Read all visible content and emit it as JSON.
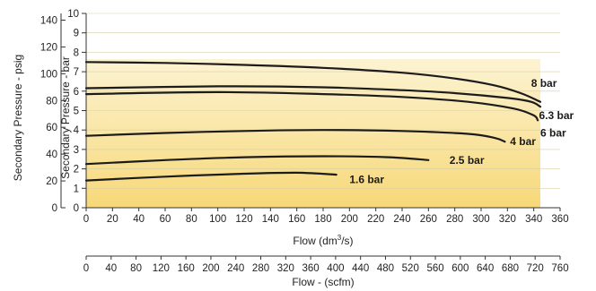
{
  "chart_data": {
    "type": "line",
    "xlabel_prefix": "Flow (dm",
    "xlabel_sup": "3",
    "xlabel_suffix": "/s)",
    "ylabel_bar": "Secondary Pressure - bar",
    "ylabel_psig": "Secondary Pressure - psig",
    "xlabel_scfm": "Flow - (scfm)",
    "xlim": [
      0,
      360
    ],
    "ylim": [
      0,
      10
    ],
    "x_ticks": [
      "0",
      "20",
      "40",
      "60",
      "80",
      "100",
      "120",
      "140",
      "160",
      "180",
      "200",
      "220",
      "240",
      "260",
      "280",
      "300",
      "320",
      "340",
      "360"
    ],
    "y_bar_ticks": [
      "0",
      "1",
      "2",
      "3",
      "4",
      "5",
      "6",
      "7",
      "8",
      "9",
      "10"
    ],
    "y_psig_ticks": [
      "0",
      "20",
      "40",
      "60",
      "80",
      "100",
      "120",
      "140"
    ],
    "scfm_ticks": [
      "0",
      "40",
      "80",
      "120",
      "160",
      "200",
      "240",
      "280",
      "320",
      "360",
      "400",
      "440",
      "480",
      "520",
      "560",
      "600",
      "640",
      "680",
      "720",
      "760"
    ],
    "psig_max": 145,
    "scfm_max": 760,
    "shaded_region": {
      "x_max": 345,
      "colors": [
        "#fcf3d2",
        "#f7d878"
      ]
    },
    "series": [
      {
        "name": "8 bar",
        "points": [
          [
            0,
            7.5
          ],
          [
            60,
            7.45
          ],
          [
            120,
            7.35
          ],
          [
            180,
            7.2
          ],
          [
            240,
            6.95
          ],
          [
            280,
            6.65
          ],
          [
            310,
            6.3
          ],
          [
            330,
            5.9
          ],
          [
            345,
            5.45
          ]
        ],
        "label_at": [
          338,
          6.4
        ]
      },
      {
        "name": "6.3 bar",
        "points": [
          [
            0,
            6.15
          ],
          [
            100,
            6.25
          ],
          [
            180,
            6.2
          ],
          [
            240,
            6.05
          ],
          [
            280,
            5.9
          ],
          [
            320,
            5.65
          ],
          [
            338,
            5.45
          ],
          [
            345,
            5.2
          ]
        ],
        "label_at": [
          344,
          4.75
        ]
      },
      {
        "name": "6 bar",
        "points": [
          [
            0,
            5.85
          ],
          [
            100,
            5.95
          ],
          [
            180,
            5.85
          ],
          [
            240,
            5.7
          ],
          [
            290,
            5.45
          ],
          [
            325,
            5.1
          ],
          [
            340,
            4.75
          ],
          [
            343,
            4.5
          ]
        ],
        "label_at": [
          345,
          3.85
        ]
      },
      {
        "name": "4 bar",
        "points": [
          [
            0,
            3.7
          ],
          [
            60,
            3.85
          ],
          [
            120,
            3.95
          ],
          [
            180,
            4.0
          ],
          [
            240,
            3.95
          ],
          [
            290,
            3.8
          ],
          [
            310,
            3.6
          ],
          [
            318,
            3.4
          ]
        ],
        "label_at": [
          322,
          3.4
        ]
      },
      {
        "name": "2.5 bar",
        "points": [
          [
            0,
            2.25
          ],
          [
            60,
            2.45
          ],
          [
            120,
            2.6
          ],
          [
            180,
            2.65
          ],
          [
            230,
            2.6
          ],
          [
            260,
            2.45
          ]
        ],
        "label_at": [
          276,
          2.45
        ]
      },
      {
        "name": "1.6 bar",
        "points": [
          [
            0,
            1.4
          ],
          [
            60,
            1.6
          ],
          [
            120,
            1.75
          ],
          [
            160,
            1.8
          ],
          [
            190,
            1.7
          ]
        ],
        "label_at": [
          200,
          1.45
        ]
      }
    ]
  }
}
